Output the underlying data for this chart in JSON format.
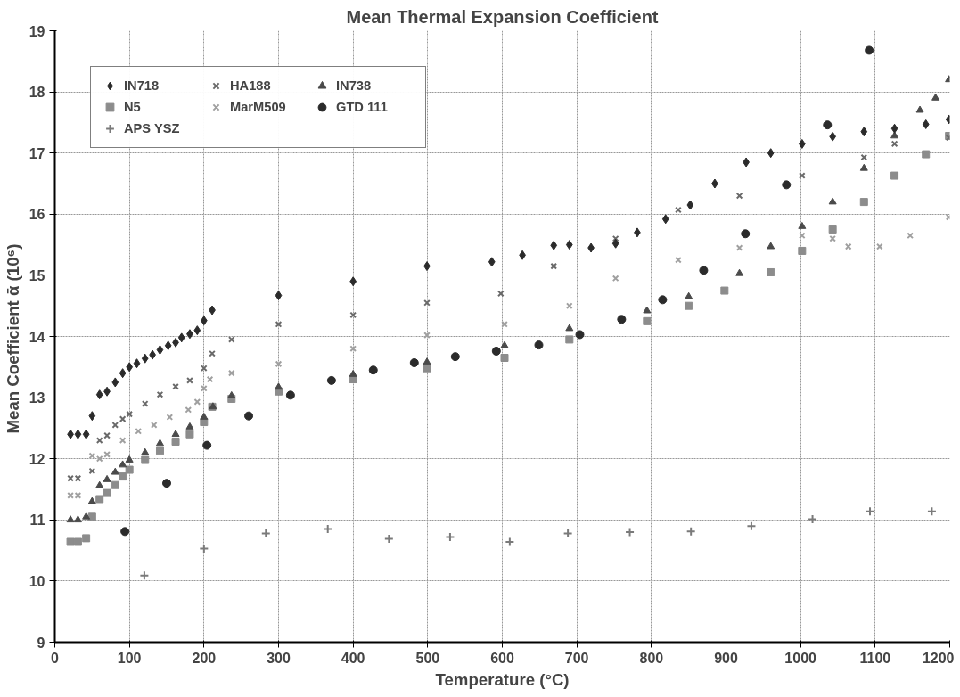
{
  "chart_data": {
    "type": "scatter",
    "title": "Mean Thermal Expansion Coefficient",
    "xlabel": "Temperature (°C)",
    "ylabel": "Mean Coefficient ᾱ  (10⁶)",
    "xlim": [
      0,
      1200
    ],
    "xticks": [
      0,
      100,
      200,
      300,
      400,
      500,
      600,
      700,
      800,
      900,
      1000,
      1100,
      1200
    ],
    "ylim": [
      9,
      19
    ],
    "yticks": [
      9,
      10,
      11,
      12,
      13,
      14,
      15,
      16,
      17,
      18,
      19
    ],
    "grid": true,
    "legend": "top left",
    "series": [
      {
        "name": "IN718",
        "color": "#2b2b2b",
        "marker": "diamond",
        "x": [
          21,
          31,
          42,
          50,
          60,
          70,
          81,
          91,
          100,
          110,
          121,
          131,
          141,
          152,
          162,
          170,
          181,
          191,
          200,
          211,
          300,
          400,
          499,
          586,
          627,
          669,
          690,
          719,
          752,
          781,
          819,
          852,
          885,
          927,
          960,
          1002,
          1043,
          1085,
          1126,
          1168,
          1199
        ],
        "values": [
          12.4,
          12.4,
          12.4,
          12.7,
          13.05,
          13.1,
          13.25,
          13.4,
          13.5,
          13.56,
          13.64,
          13.7,
          13.78,
          13.85,
          13.9,
          13.98,
          14.04,
          14.1,
          14.26,
          14.43,
          14.67,
          14.9,
          15.15,
          15.22,
          15.33,
          15.49,
          15.5,
          15.45,
          15.52,
          15.7,
          15.92,
          16.15,
          16.5,
          16.85,
          17.0,
          17.15,
          17.27,
          17.35,
          17.4,
          17.47,
          17.55
        ]
      },
      {
        "name": "HA188",
        "color": "#6a6a6a",
        "marker": "x",
        "x": [
          21,
          31,
          50,
          60,
          70,
          81,
          91,
          100,
          121,
          141,
          162,
          181,
          200,
          211,
          237,
          300,
          400,
          499,
          598,
          669,
          752,
          836,
          918,
          1002,
          1085,
          1126,
          1199
        ],
        "values": [
          11.68,
          11.68,
          11.8,
          12.3,
          12.38,
          12.55,
          12.65,
          12.73,
          12.9,
          13.05,
          13.18,
          13.28,
          13.48,
          13.72,
          13.95,
          14.2,
          14.35,
          14.55,
          14.7,
          15.15,
          15.6,
          16.07,
          16.3,
          16.63,
          16.93,
          17.15,
          17.25
        ]
      },
      {
        "name": "IN738",
        "color": "#4a4a4a",
        "marker": "triangle",
        "x": [
          21,
          31,
          42,
          50,
          60,
          70,
          81,
          91,
          100,
          121,
          141,
          162,
          181,
          200,
          212,
          237,
          300,
          400,
          499,
          603,
          690,
          794,
          850,
          918,
          960,
          1002,
          1043,
          1085,
          1126,
          1160,
          1181,
          1199
        ],
        "values": [
          11.0,
          11.0,
          11.05,
          11.3,
          11.56,
          11.66,
          11.78,
          11.9,
          11.98,
          12.1,
          12.25,
          12.4,
          12.52,
          12.68,
          12.85,
          13.03,
          13.17,
          13.38,
          13.58,
          13.85,
          14.13,
          14.42,
          14.65,
          15.03,
          15.47,
          15.8,
          16.2,
          16.75,
          17.28,
          17.7,
          17.9,
          18.2
        ]
      },
      {
        "name": "N5",
        "color": "#8c8c8c",
        "marker": "square",
        "x": [
          21,
          31,
          42,
          50,
          60,
          70,
          81,
          91,
          100,
          121,
          141,
          162,
          181,
          200,
          211,
          237,
          300,
          400,
          499,
          603,
          690,
          794,
          850,
          898,
          960,
          1002,
          1043,
          1085,
          1126,
          1168,
          1199
        ],
        "values": [
          10.64,
          10.64,
          10.7,
          11.05,
          11.34,
          11.44,
          11.57,
          11.71,
          11.82,
          11.98,
          12.13,
          12.28,
          12.4,
          12.6,
          12.85,
          12.98,
          13.1,
          13.3,
          13.48,
          13.65,
          13.95,
          14.25,
          14.5,
          14.75,
          15.05,
          15.4,
          15.75,
          16.2,
          16.63,
          16.98,
          17.28
        ]
      },
      {
        "name": "MarM509",
        "color": "#a0a0a0",
        "marker": "x",
        "x": [
          21,
          31,
          50,
          60,
          70,
          91,
          112,
          133,
          154,
          179,
          191,
          200,
          208,
          237,
          300,
          400,
          499,
          603,
          690,
          752,
          836,
          918,
          1002,
          1043,
          1064,
          1106,
          1147,
          1199
        ],
        "values": [
          11.4,
          11.4,
          12.05,
          12.0,
          12.07,
          12.3,
          12.45,
          12.55,
          12.68,
          12.8,
          12.93,
          13.15,
          13.3,
          13.4,
          13.55,
          13.8,
          14.02,
          14.2,
          14.5,
          14.95,
          15.25,
          15.45,
          15.65,
          15.6,
          15.47,
          15.47,
          15.65,
          15.95
        ]
      },
      {
        "name": "GTD 111",
        "color": "#2b2b2b",
        "marker": "circle",
        "x": [
          94,
          150,
          204,
          260,
          316,
          371,
          427,
          482,
          537,
          592,
          649,
          704,
          760,
          815,
          870,
          926,
          981,
          1036,
          1092
        ],
        "values": [
          10.81,
          11.6,
          12.22,
          12.7,
          13.04,
          13.28,
          13.45,
          13.57,
          13.67,
          13.76,
          13.86,
          14.03,
          14.28,
          14.6,
          15.08,
          15.68,
          16.48,
          17.46,
          18.68
        ]
      },
      {
        "name": "APS YSZ",
        "color": "#7a7a7a",
        "marker": "cross",
        "x": [
          120,
          200,
          283,
          366,
          448,
          530,
          610,
          688,
          771,
          853,
          934,
          1016,
          1093,
          1176
        ],
        "values": [
          10.09,
          10.53,
          10.78,
          10.85,
          10.69,
          10.72,
          10.64,
          10.78,
          10.8,
          10.81,
          10.9,
          11.01,
          11.14,
          11.14
        ]
      }
    ]
  }
}
